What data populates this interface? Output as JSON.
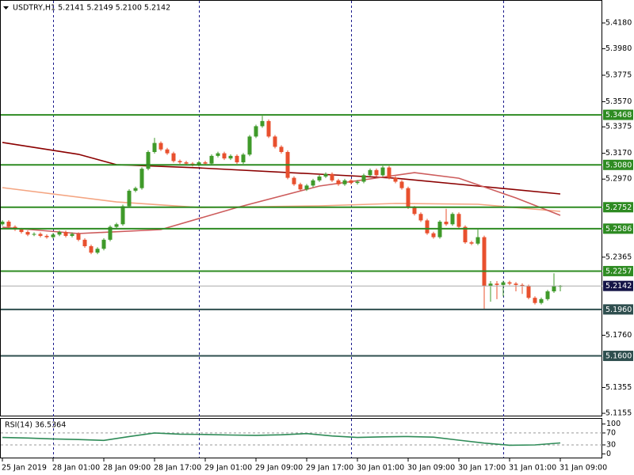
{
  "chart_data": [
    {
      "type": "candlestick",
      "title": "USDTRY,H1  5.2141 5.2149 5.2100 5.2142",
      "open": [
        5.262,
        5.264,
        5.26,
        5.258,
        5.256,
        5.254,
        5.2545,
        5.253,
        5.252,
        5.254,
        5.256,
        5.253,
        5.2545,
        5.25,
        5.245,
        5.24,
        5.243,
        5.25,
        5.26,
        5.262,
        5.276,
        5.288,
        5.29,
        5.305,
        5.318,
        5.325,
        5.32,
        5.317,
        5.311,
        5.31,
        5.309,
        5.308,
        5.31,
        5.309,
        5.315,
        5.317,
        5.313,
        5.315,
        5.31,
        5.316,
        5.33,
        5.338,
        5.342,
        5.33,
        5.322,
        5.318,
        5.298,
        5.293,
        5.289,
        5.292,
        5.296,
        5.299,
        5.301,
        5.296,
        5.293,
        5.296,
        5.294,
        5.295,
        5.3,
        5.304,
        5.3,
        5.306,
        5.298,
        5.295,
        5.29,
        5.275,
        5.27,
        5.265,
        5.255,
        5.252,
        5.264,
        5.262,
        5.27,
        5.26,
        5.248,
        5.247,
        5.252,
        5.214,
        5.216,
        5.215,
        5.217,
        5.216,
        5.215,
        5.214,
        5.205,
        5.201,
        5.204,
        5.21,
        5.2141
      ],
      "high": [
        5.2652,
        5.2652,
        5.2612,
        5.2592,
        5.2572,
        5.2557,
        5.2557,
        5.2542,
        5.2552,
        5.2572,
        5.2572,
        5.2557,
        5.2557,
        5.2512,
        5.2462,
        5.2442,
        5.2512,
        5.2612,
        5.2632,
        5.2772,
        5.2892,
        5.2912,
        5.3062,
        5.3192,
        5.329,
        5.3262,
        5.3212,
        5.3182,
        5.3122,
        5.3112,
        5.3102,
        5.3112,
        5.3112,
        5.3162,
        5.3182,
        5.3182,
        5.3162,
        5.3162,
        5.3172,
        5.3312,
        5.3392,
        5.346,
        5.3432,
        5.3312,
        5.3232,
        5.3192,
        5.2992,
        5.2942,
        5.2932,
        5.2972,
        5.3002,
        5.3022,
        5.3022,
        5.2972,
        5.2972,
        5.2972,
        5.2962,
        5.3012,
        5.3052,
        5.3052,
        5.3072,
        5.3072,
        5.2992,
        5.2962,
        5.2912,
        5.2762,
        5.2712,
        5.2662,
        5.2562,
        5.2652,
        5.274,
        5.2712,
        5.2712,
        5.2612,
        5.2492,
        5.258,
        5.2532,
        5.218,
        5.218,
        5.2182,
        5.2182,
        5.2172,
        5.2162,
        5.2152,
        5.2062,
        5.2052,
        5.2112,
        5.224,
        5.2149
      ],
      "low": [
        5.2608,
        5.2588,
        5.2568,
        5.2548,
        5.2528,
        5.2528,
        5.2518,
        5.2508,
        5.2508,
        5.2528,
        5.2518,
        5.2518,
        5.2488,
        5.2438,
        5.2388,
        5.2388,
        5.2418,
        5.2488,
        5.2588,
        5.2608,
        5.2748,
        5.2868,
        5.2888,
        5.3038,
        5.3168,
        5.3188,
        5.3158,
        5.3098,
        5.3088,
        5.3078,
        5.3068,
        5.3068,
        5.3078,
        5.3078,
        5.3138,
        5.3118,
        5.3118,
        5.3088,
        5.3088,
        5.3148,
        5.3288,
        5.3368,
        5.3288,
        5.3208,
        5.3168,
        5.2968,
        5.2918,
        5.2878,
        5.2878,
        5.2908,
        5.2948,
        5.2978,
        5.2948,
        5.2918,
        5.2918,
        5.2928,
        5.2928,
        5.2938,
        5.2988,
        5.2988,
        5.2988,
        5.2968,
        5.2938,
        5.2888,
        5.2738,
        5.2688,
        5.2638,
        5.2538,
        5.2508,
        5.2508,
        5.2608,
        5.2608,
        5.2588,
        5.2468,
        5.2458,
        5.2458,
        5.196,
        5.202,
        5.204,
        5.206,
        5.2148,
        5.21,
        5.208,
        5.2038,
        5.1998,
        5.1998,
        5.2028,
        5.2088,
        5.21
      ],
      "close": [
        5.264,
        5.26,
        5.258,
        5.256,
        5.254,
        5.2545,
        5.253,
        5.252,
        5.254,
        5.256,
        5.253,
        5.2545,
        5.25,
        5.245,
        5.24,
        5.243,
        5.25,
        5.26,
        5.262,
        5.276,
        5.288,
        5.29,
        5.305,
        5.318,
        5.325,
        5.32,
        5.317,
        5.311,
        5.31,
        5.309,
        5.308,
        5.31,
        5.309,
        5.315,
        5.317,
        5.313,
        5.315,
        5.31,
        5.316,
        5.33,
        5.338,
        5.342,
        5.33,
        5.322,
        5.318,
        5.298,
        5.293,
        5.289,
        5.292,
        5.296,
        5.299,
        5.301,
        5.296,
        5.293,
        5.296,
        5.294,
        5.295,
        5.3,
        5.304,
        5.3,
        5.306,
        5.298,
        5.295,
        5.29,
        5.275,
        5.27,
        5.265,
        5.255,
        5.252,
        5.264,
        5.262,
        5.27,
        5.26,
        5.248,
        5.247,
        5.252,
        5.214,
        5.216,
        5.215,
        5.217,
        5.216,
        5.215,
        5.214,
        5.205,
        5.201,
        5.204,
        5.21,
        5.214,
        5.2142
      ],
      "up_color": "#3f9a2a",
      "down_color": "#e8502e",
      "series": [
        {
          "type": "line",
          "color": "#8b0000",
          "x": [
            0,
            12,
            18,
            31,
            50,
            62,
            75,
            88
          ],
          "values": [
            5.3254,
            5.3162,
            5.3082,
            5.3057,
            5.3008,
            5.2977,
            5.2916,
            5.2855
          ]
        },
        {
          "type": "line",
          "color": "#f4a582",
          "x": [
            0,
            18,
            31,
            50,
            62,
            75,
            88
          ],
          "values": [
            5.2904,
            5.2793,
            5.275,
            5.2763,
            5.2781,
            5.2775,
            5.272
          ]
        },
        {
          "type": "line",
          "color": "#cd5c5c",
          "x": [
            0,
            12,
            25,
            37,
            50,
            65,
            72,
            81,
            88
          ],
          "values": [
            5.2597,
            5.2548,
            5.2579,
            5.275,
            5.2916,
            5.302,
            5.2977,
            5.2824,
            5.2689
          ]
        }
      ],
      "levels": [
        {
          "value": 5.3468,
          "color": "#2e8b22"
        },
        {
          "value": 5.308,
          "label": "5.3080",
          "color": "#2e8b22"
        },
        {
          "value": 5.2752,
          "color": "#2e8b22"
        },
        {
          "value": 5.2586,
          "color": "#2e8b22"
        },
        {
          "value": 5.2257,
          "color": "#2e8b22"
        },
        {
          "value": 5.196,
          "label": "5.1960",
          "color": "#2f4f4f"
        },
        {
          "value": 5.16,
          "label": "5.1600",
          "color": "#2f4f4f"
        }
      ],
      "current_price": 5.2142,
      "separators": [
        8,
        31,
        55,
        79
      ],
      "xlim": [
        -0.375,
        94.625
      ],
      "ylim": [
        5.1137,
        5.4358
      ],
      "yticks": [
        {
          "value": 5.418,
          "label": "5.4180"
        },
        {
          "value": 5.398,
          "label": "5.3980"
        },
        5.3775,
        {
          "value": 5.357,
          "label": "5.3570"
        },
        5.3375,
        {
          "value": 5.317,
          "label": "5.3170"
        },
        {
          "value": 5.297,
          "label": "5.2970"
        },
        5.2365,
        {
          "value": 5.176,
          "label": "5.1760"
        },
        5.1355,
        5.1155
      ],
      "xticks": [
        {
          "value": 0,
          "label": "25 Jan 2019"
        },
        {
          "value": 8,
          "label": "28 Jan 01:00"
        },
        {
          "value": 16,
          "label": "28 Jan 09:00"
        },
        {
          "value": 24,
          "label": "28 Jan 17:00"
        },
        {
          "value": 32,
          "label": "29 Jan 01:00"
        },
        {
          "value": 40,
          "label": "29 Jan 09:00"
        },
        {
          "value": 48,
          "label": "29 Jan 17:00"
        },
        {
          "value": 56,
          "label": "30 Jan 01:00"
        },
        {
          "value": 64,
          "label": "30 Jan 09:00"
        },
        {
          "value": 72,
          "label": "30 Jan 17:00"
        },
        {
          "value": 80,
          "label": "31 Jan 01:00"
        },
        {
          "value": 88,
          "label": "31 Jan 09:00"
        }
      ]
    },
    {
      "type": "line",
      "title": "RSI(14) 36.5364",
      "series": [
        {
          "color": "#2e8b57",
          "x": [
            0,
            4,
            8,
            12,
            16,
            20,
            24,
            28,
            32,
            36,
            40,
            44,
            48,
            52,
            56,
            60,
            64,
            68,
            72,
            76,
            80,
            84,
            88
          ],
          "values": [
            55,
            53,
            50,
            48,
            45,
            58,
            70,
            66,
            65,
            63,
            62,
            64,
            68,
            60,
            55,
            57,
            58,
            56,
            46,
            36,
            29,
            30,
            36.5364
          ]
        }
      ],
      "levels": [
        70,
        30
      ],
      "ylim": [
        -12.5,
        117.5
      ],
      "yticks": [
        100,
        70,
        30,
        0
      ]
    }
  ]
}
